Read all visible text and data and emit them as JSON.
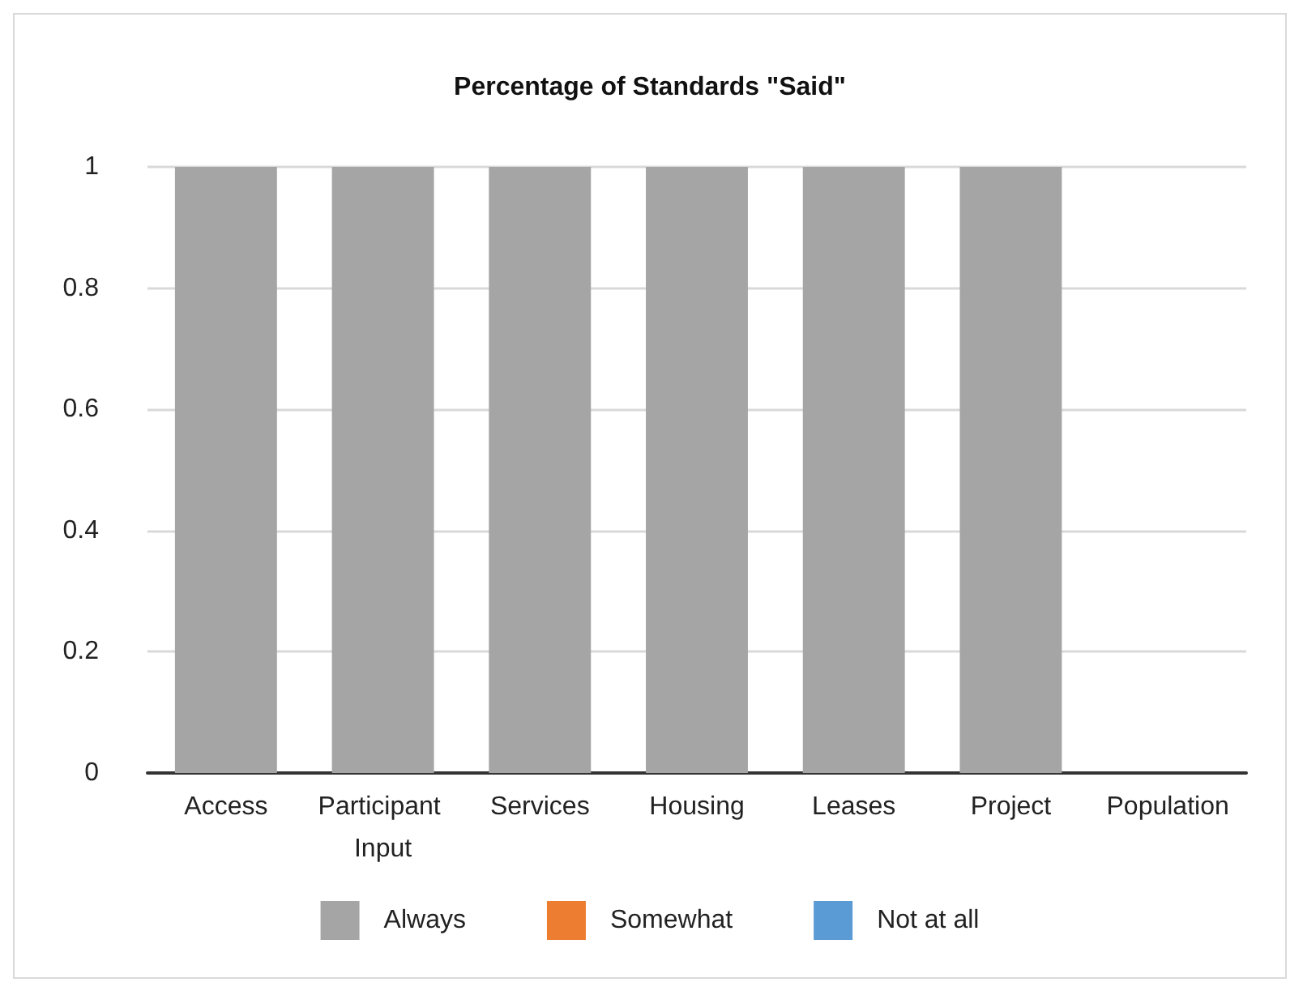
{
  "chart_data": {
    "type": "bar",
    "title": "Percentage of Standards \"Said\"",
    "categories": [
      "Access",
      "Participant Input",
      "Services",
      "Housing",
      "Leases",
      "Project",
      "Population"
    ],
    "series": [
      {
        "name": "Always",
        "color": "#a5a5a5",
        "values": [
          1,
          1,
          1,
          1,
          1,
          1,
          0
        ]
      },
      {
        "name": "Somewhat",
        "color": "#ed7d31",
        "values": [
          0,
          0,
          0,
          0,
          0,
          0,
          0
        ]
      },
      {
        "name": "Not at all",
        "color": "#5b9bd5",
        "values": [
          0,
          0,
          0,
          0,
          0,
          0,
          0
        ]
      }
    ],
    "stacked": true,
    "ylim": [
      0,
      1
    ],
    "yticks": [
      0,
      0.2,
      0.4,
      0.6,
      0.8,
      1
    ],
    "grid": "y",
    "legend": "bottom"
  }
}
